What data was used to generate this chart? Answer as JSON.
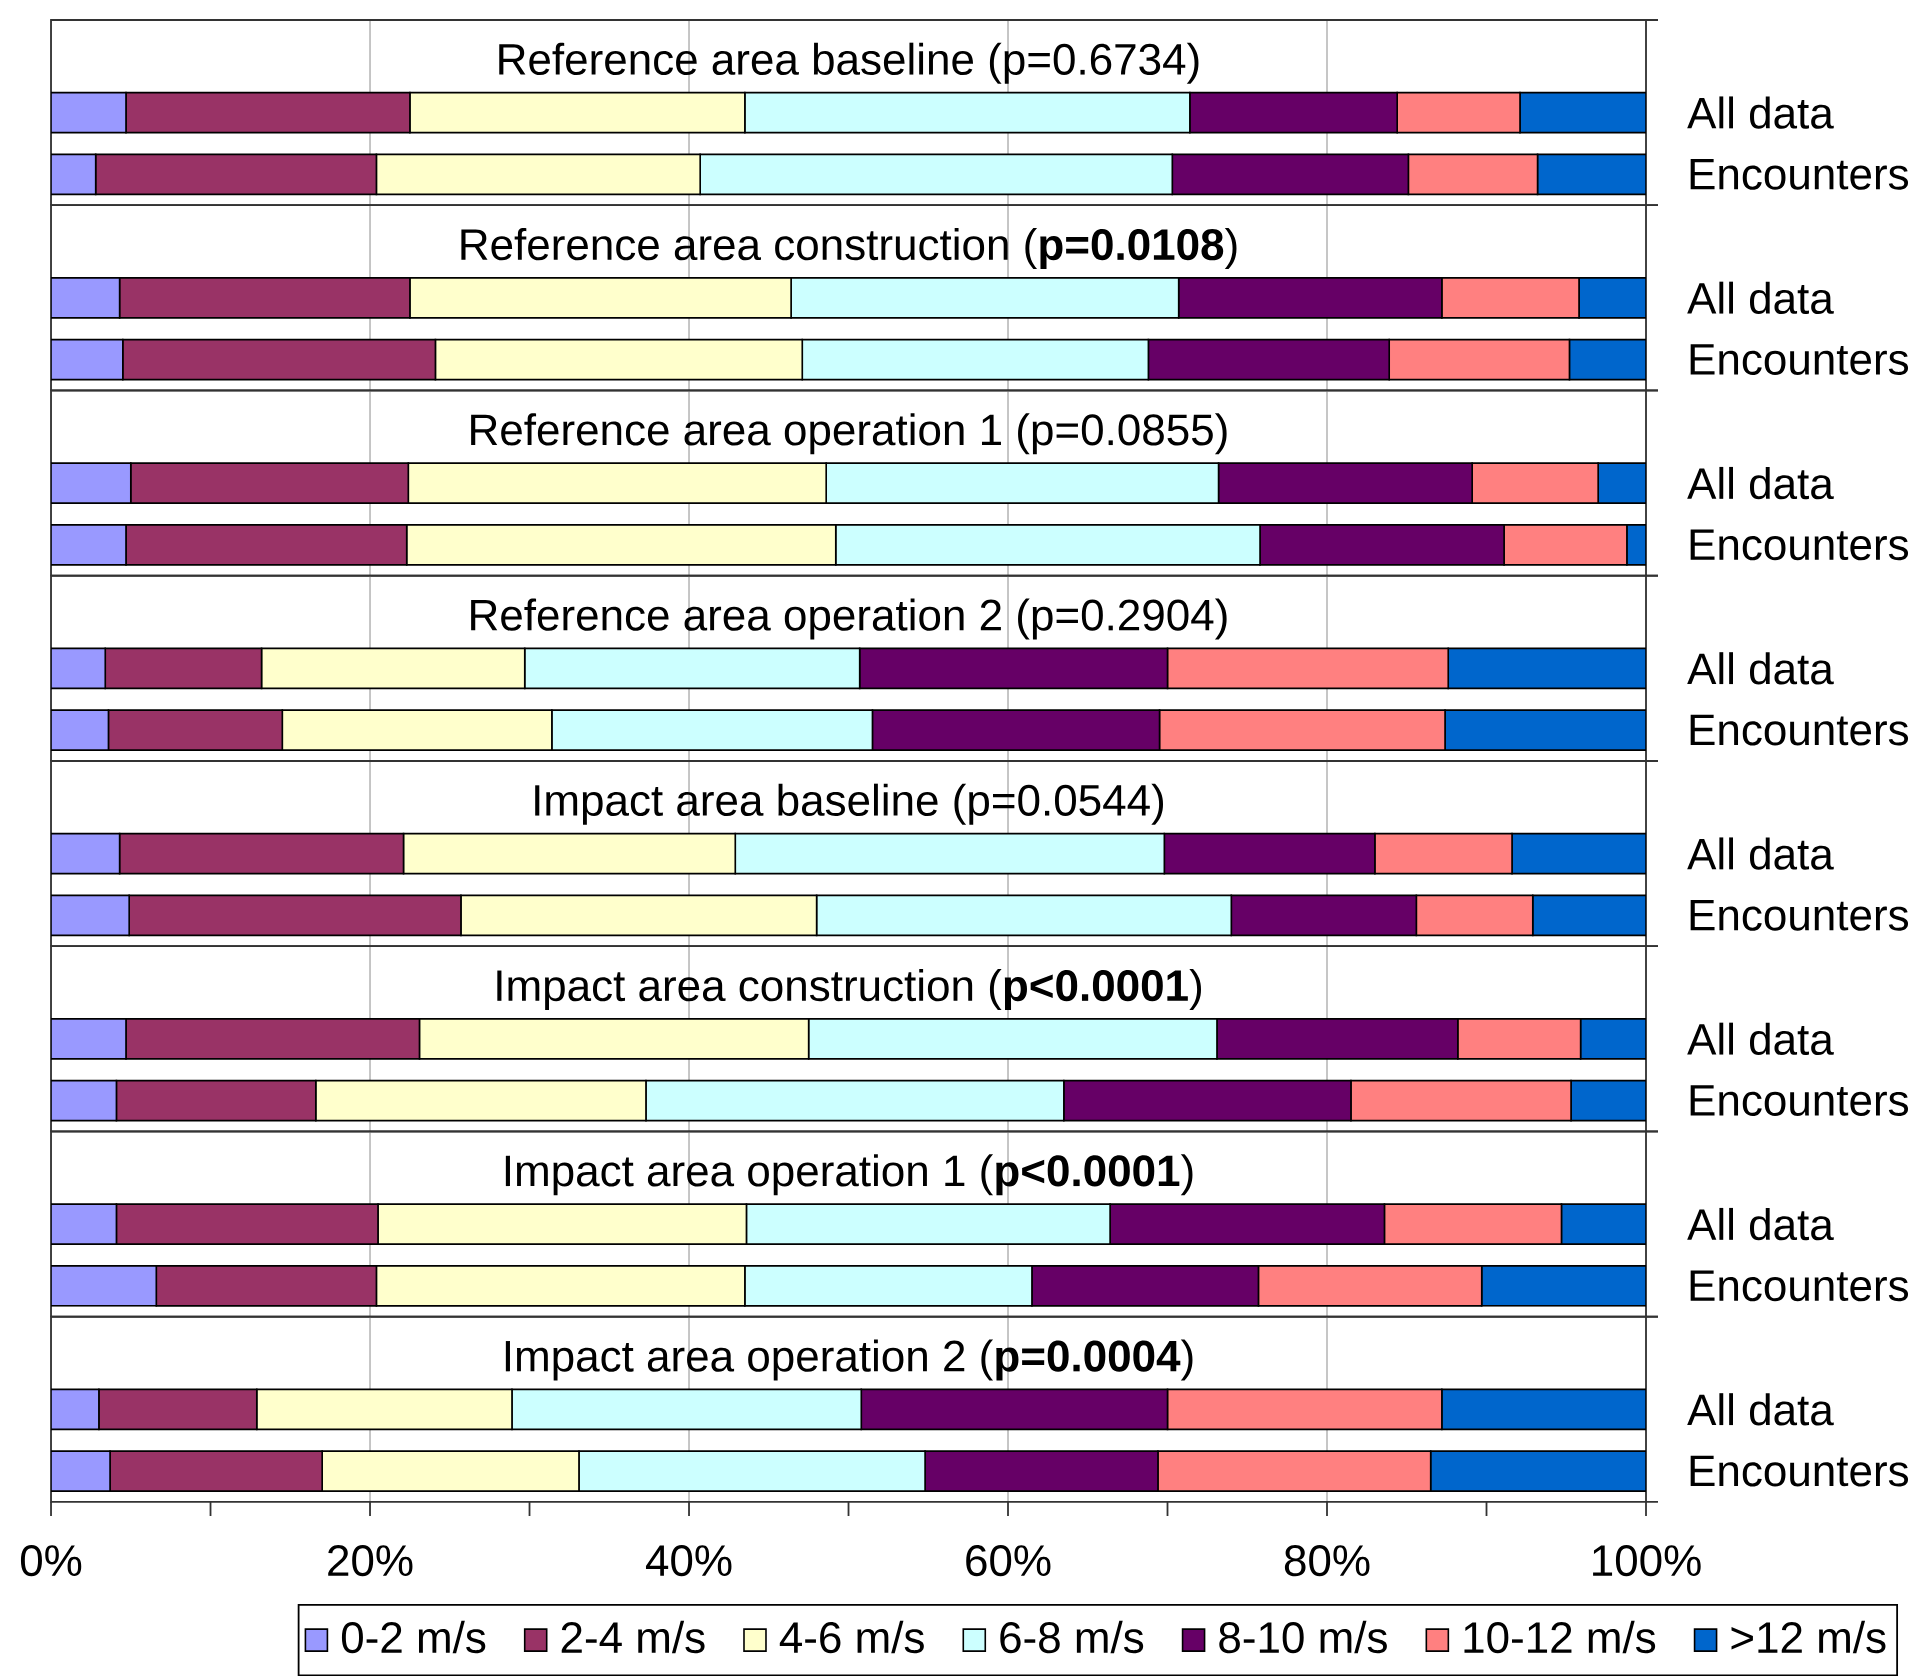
{
  "chart_data": [
    {
      "type": "bar",
      "orientation": "horizontal",
      "stacked": true,
      "title": "Reference area baseline (p=0.6734)",
      "categories": [
        "All data",
        "Encounters"
      ],
      "series": [
        {
          "color": "#9999ff",
          "values": [
            4.7,
            2.8
          ]
        },
        {
          "color": "#993366",
          "values": [
            17.8,
            17.6
          ]
        },
        {
          "color": "#ffffcc",
          "values": [
            21.0,
            20.3
          ]
        },
        {
          "color": "#ccffff",
          "values": [
            27.9,
            29.6
          ]
        },
        {
          "color": "#660066",
          "values": [
            13.0,
            14.8
          ]
        },
        {
          "color": "#ff8080",
          "values": [
            7.7,
            8.1
          ]
        },
        {
          "color": "#0066cc",
          "values": [
            7.9,
            6.8
          ]
        }
      ],
      "xlim": [
        0,
        100
      ],
      "xticks": [
        0,
        20,
        40,
        60,
        80,
        100
      ],
      "grid": "x",
      "tick_labels": "y"
    },
    {
      "type": "bar",
      "orientation": "horizontal",
      "stacked": true,
      "title": "Reference area construction (**p=0.0108**)",
      "categories": [
        "All data",
        "Encounters"
      ],
      "series": [
        {
          "color": "#9999ff",
          "values": [
            4.3,
            4.5
          ]
        },
        {
          "color": "#993366",
          "values": [
            18.2,
            19.6
          ]
        },
        {
          "color": "#ffffcc",
          "values": [
            23.9,
            23.0
          ]
        },
        {
          "color": "#ccffff",
          "values": [
            24.3,
            21.7
          ]
        },
        {
          "color": "#660066",
          "values": [
            16.5,
            15.1
          ]
        },
        {
          "color": "#ff8080",
          "values": [
            8.6,
            11.3
          ]
        },
        {
          "color": "#0066cc",
          "values": [
            4.2,
            4.8
          ]
        }
      ],
      "xlim": [
        0,
        100
      ],
      "xticks": [
        0,
        20,
        40,
        60,
        80,
        100
      ],
      "grid": "x",
      "tick_labels": "y"
    },
    {
      "type": "bar",
      "orientation": "horizontal",
      "stacked": true,
      "title": "Reference area operation 1 (p=0.0855)",
      "categories": [
        "All data",
        "Encounters"
      ],
      "series": [
        {
          "color": "#9999ff",
          "values": [
            5.0,
            4.7
          ]
        },
        {
          "color": "#993366",
          "values": [
            17.4,
            17.6
          ]
        },
        {
          "color": "#ffffcc",
          "values": [
            26.2,
            26.9
          ]
        },
        {
          "color": "#ccffff",
          "values": [
            24.6,
            26.6
          ]
        },
        {
          "color": "#660066",
          "values": [
            15.9,
            15.3
          ]
        },
        {
          "color": "#ff8080",
          "values": [
            7.9,
            7.7
          ]
        },
        {
          "color": "#0066cc",
          "values": [
            3.0,
            1.2
          ]
        }
      ],
      "xlim": [
        0,
        100
      ],
      "xticks": [
        0,
        20,
        40,
        60,
        80,
        100
      ],
      "grid": "x",
      "tick_labels": "y"
    },
    {
      "type": "bar",
      "orientation": "horizontal",
      "stacked": true,
      "title": "Reference area operation 2 (p=0.2904)",
      "categories": [
        "All data",
        "Encounters"
      ],
      "series": [
        {
          "color": "#9999ff",
          "values": [
            3.4,
            3.6
          ]
        },
        {
          "color": "#993366",
          "values": [
            9.8,
            10.9
          ]
        },
        {
          "color": "#ffffcc",
          "values": [
            16.5,
            16.9
          ]
        },
        {
          "color": "#ccffff",
          "values": [
            21.0,
            20.1
          ]
        },
        {
          "color": "#660066",
          "values": [
            19.3,
            18.0
          ]
        },
        {
          "color": "#ff8080",
          "values": [
            17.6,
            17.9
          ]
        },
        {
          "color": "#0066cc",
          "values": [
            12.4,
            12.6
          ]
        }
      ],
      "xlim": [
        0,
        100
      ],
      "xticks": [
        0,
        20,
        40,
        60,
        80,
        100
      ],
      "grid": "x",
      "tick_labels": "y"
    },
    {
      "type": "bar",
      "orientation": "horizontal",
      "stacked": true,
      "title": "Impact area baseline (p=0.0544)",
      "categories": [
        "All data",
        "Encounters"
      ],
      "series": [
        {
          "color": "#9999ff",
          "values": [
            4.3,
            4.9
          ]
        },
        {
          "color": "#993366",
          "values": [
            17.8,
            20.8
          ]
        },
        {
          "color": "#ffffcc",
          "values": [
            20.8,
            22.3
          ]
        },
        {
          "color": "#ccffff",
          "values": [
            26.9,
            26.0
          ]
        },
        {
          "color": "#660066",
          "values": [
            13.2,
            11.6
          ]
        },
        {
          "color": "#ff8080",
          "values": [
            8.6,
            7.3
          ]
        },
        {
          "color": "#0066cc",
          "values": [
            8.4,
            7.1
          ]
        }
      ],
      "xlim": [
        0,
        100
      ],
      "xticks": [
        0,
        20,
        40,
        60,
        80,
        100
      ],
      "grid": "x",
      "tick_labels": "y"
    },
    {
      "type": "bar",
      "orientation": "horizontal",
      "stacked": true,
      "title": "Impact area construction (**p<0.0001**)",
      "categories": [
        "All data",
        "Encounters"
      ],
      "series": [
        {
          "color": "#9999ff",
          "values": [
            4.7,
            4.1
          ]
        },
        {
          "color": "#993366",
          "values": [
            18.4,
            12.5
          ]
        },
        {
          "color": "#ffffcc",
          "values": [
            24.4,
            20.7
          ]
        },
        {
          "color": "#ccffff",
          "values": [
            25.6,
            26.2
          ]
        },
        {
          "color": "#660066",
          "values": [
            15.1,
            18.0
          ]
        },
        {
          "color": "#ff8080",
          "values": [
            7.7,
            13.8
          ]
        },
        {
          "color": "#0066cc",
          "values": [
            4.1,
            4.7
          ]
        }
      ],
      "xlim": [
        0,
        100
      ],
      "xticks": [
        0,
        20,
        40,
        60,
        80,
        100
      ],
      "grid": "x",
      "tick_labels": "y"
    },
    {
      "type": "bar",
      "orientation": "horizontal",
      "stacked": true,
      "title": "Impact area operation 1 (**p<0.0001**)",
      "categories": [
        "All data",
        "Encounters"
      ],
      "series": [
        {
          "color": "#9999ff",
          "values": [
            4.1,
            6.6
          ]
        },
        {
          "color": "#993366",
          "values": [
            16.4,
            13.8
          ]
        },
        {
          "color": "#ffffcc",
          "values": [
            23.1,
            23.1
          ]
        },
        {
          "color": "#ccffff",
          "values": [
            22.8,
            18.0
          ]
        },
        {
          "color": "#660066",
          "values": [
            17.2,
            14.2
          ]
        },
        {
          "color": "#ff8080",
          "values": [
            11.1,
            14.0
          ]
        },
        {
          "color": "#0066cc",
          "values": [
            5.3,
            10.3
          ]
        }
      ],
      "xlim": [
        0,
        100
      ],
      "xticks": [
        0,
        20,
        40,
        60,
        80,
        100
      ],
      "grid": "x",
      "tick_labels": "y"
    },
    {
      "type": "bar",
      "orientation": "horizontal",
      "stacked": true,
      "title": "Impact area operation 2 (**p=0.0004**)",
      "categories": [
        "All data",
        "Encounters"
      ],
      "series": [
        {
          "name": "0-2 m/s",
          "color": "#9999ff",
          "values": [
            3.0,
            3.7
          ]
        },
        {
          "name": "2-4 m/s",
          "color": "#993366",
          "values": [
            9.9,
            13.3
          ]
        },
        {
          "name": "4-6 m/s",
          "color": "#ffffcc",
          "values": [
            16.0,
            16.1
          ]
        },
        {
          "name": "6-8 m/s",
          "color": "#ccffff",
          "values": [
            21.9,
            21.7
          ]
        },
        {
          "name": "8-10 m/s",
          "color": "#660066",
          "values": [
            19.2,
            14.6
          ]
        },
        {
          "name": "10-12 m/s",
          "color": "#ff8080",
          "values": [
            17.2,
            17.1
          ]
        },
        {
          "name": ">12 m/s",
          "color": "#0066cc",
          "values": [
            12.8,
            13.5
          ]
        }
      ],
      "xlim": [
        0,
        100
      ],
      "xticks": [
        {
          "value": 0,
          "label": "0%"
        },
        {
          "value": 20,
          "label": "20%"
        },
        {
          "value": 40,
          "label": "40%"
        },
        {
          "value": 60,
          "label": "60%"
        },
        {
          "value": 80,
          "label": "80%"
        },
        {
          "value": 100,
          "label": "100%"
        }
      ],
      "grid": "x",
      "legend": "bottom"
    }
  ]
}
